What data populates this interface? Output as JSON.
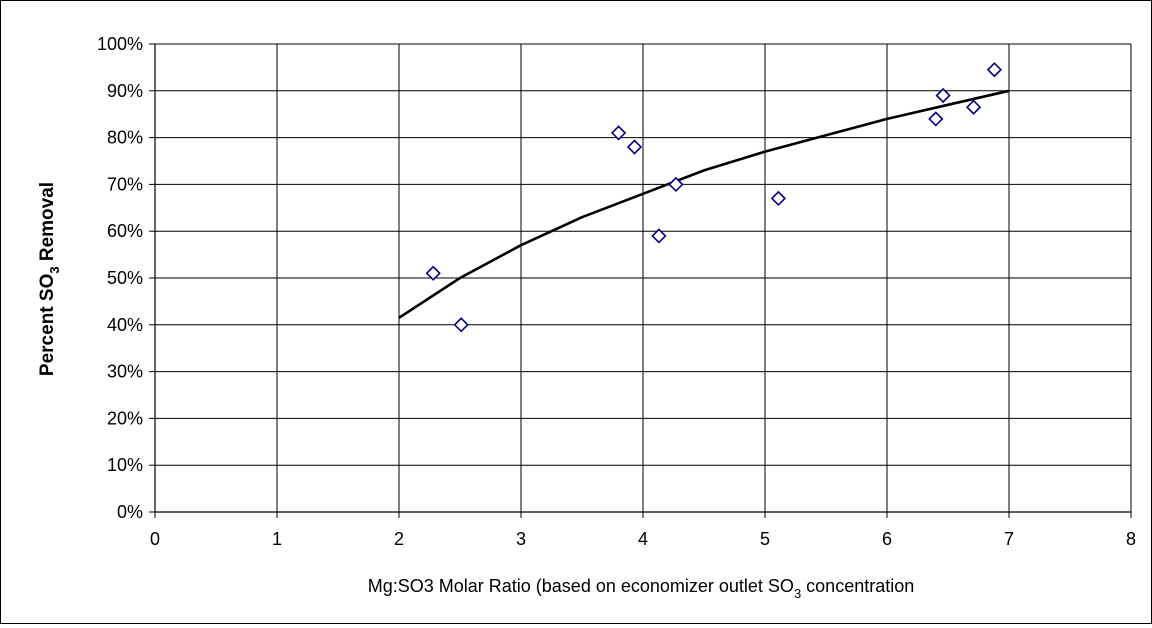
{
  "chart_data": {
    "type": "scatter",
    "title": "",
    "xlabel_main": "Mg:SO3 Molar Ratio (based on economizer outlet SO",
    "xlabel_sub": "3",
    "xlabel_tail": " concentration",
    "ylabel_main": "Percent SO",
    "ylabel_sub": "3",
    "ylabel_tail": " Removal",
    "xlim": [
      0,
      8
    ],
    "ylim": [
      0,
      100
    ],
    "x_ticks": [
      0,
      1,
      2,
      3,
      4,
      5,
      6,
      7,
      8
    ],
    "x_tick_labels": [
      "0",
      "1",
      "2",
      "3",
      "4",
      "5",
      "6",
      "7",
      "8"
    ],
    "y_ticks": [
      0,
      10,
      20,
      30,
      40,
      50,
      60,
      70,
      80,
      90,
      100
    ],
    "y_tick_labels": [
      "0%",
      "10%",
      "20%",
      "30%",
      "40%",
      "50%",
      "60%",
      "70%",
      "80%",
      "90%",
      "100%"
    ],
    "grid": true,
    "legend": "none",
    "series": [
      {
        "type": "scatter",
        "marker": "diamond",
        "color": "#000080",
        "x": [
          2.28,
          2.51,
          3.8,
          3.93,
          4.13,
          4.27,
          5.11,
          6.4,
          6.46,
          6.71,
          6.88
        ],
        "y": [
          51,
          40,
          81,
          78,
          59,
          70,
          67,
          84,
          89,
          86.5,
          94.5
        ]
      },
      {
        "type": "line",
        "role": "trendline",
        "color": "#000000",
        "x": [
          2.0,
          2.5,
          3.0,
          3.5,
          4.0,
          4.5,
          5.0,
          5.5,
          6.0,
          6.5,
          7.0
        ],
        "y": [
          41.5,
          50.0,
          57.0,
          63.0,
          68.0,
          73.0,
          77.0,
          80.5,
          84.0,
          87.0,
          90.0
        ]
      }
    ]
  }
}
